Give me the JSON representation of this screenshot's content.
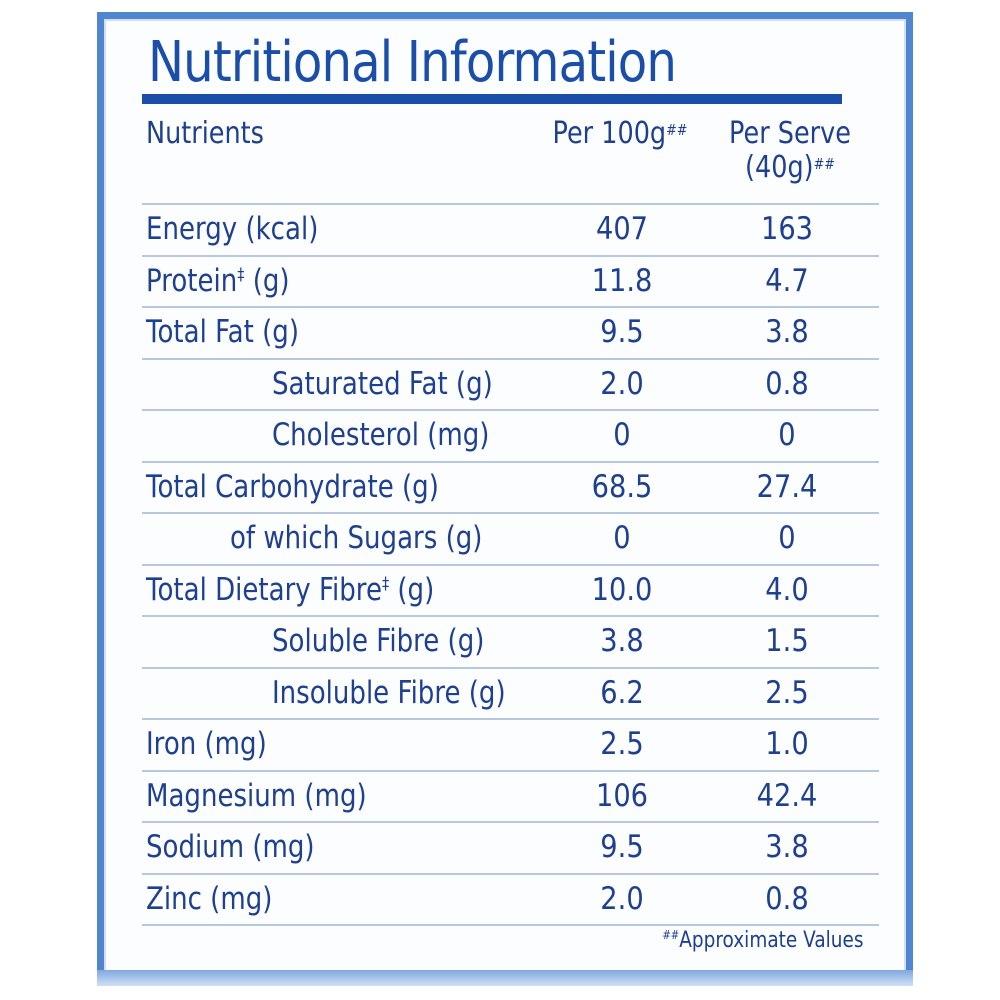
{
  "title": "Nutritional Information",
  "headers": {
    "nutrients": "Nutrients",
    "per100": "Per 100g",
    "per100_mark": "##",
    "serve_line1": "Per Serve",
    "serve_line2": "(40g)",
    "serve_mark": "##"
  },
  "rows": [
    {
      "name": "Energy (kcal)",
      "mark": "",
      "unit": "",
      "per100": "407",
      "serve": "163",
      "indent": 0
    },
    {
      "name": "Protein",
      "mark": "‡",
      "unit": " (g)",
      "per100": "11.8",
      "serve": "4.7",
      "indent": 0
    },
    {
      "name": "Total Fat (g)",
      "mark": "",
      "unit": "",
      "per100": "9.5",
      "serve": "3.8",
      "indent": 0
    },
    {
      "name": "Saturated Fat (g)",
      "mark": "",
      "unit": "",
      "per100": "2.0",
      "serve": "0.8",
      "indent": 3
    },
    {
      "name": "Cholesterol (mg)",
      "mark": "",
      "unit": "",
      "per100": "0",
      "serve": "0",
      "indent": 3
    },
    {
      "name": "Total Carbohydrate (g)",
      "mark": "",
      "unit": "",
      "per100": "68.5",
      "serve": "27.4",
      "indent": 0
    },
    {
      "name": "of which Sugars (g)",
      "mark": "",
      "unit": "",
      "per100": "0",
      "serve": "0",
      "indent": 2
    },
    {
      "name": "Total Dietary Fibre",
      "mark": "‡",
      "unit": " (g)",
      "per100": "10.0",
      "serve": "4.0",
      "indent": 0
    },
    {
      "name": "Soluble Fibre (g)",
      "mark": "",
      "unit": "",
      "per100": "3.8",
      "serve": "1.5",
      "indent": 3
    },
    {
      "name": "Insoluble Fibre (g)",
      "mark": "",
      "unit": "",
      "per100": "6.2",
      "serve": "2.5",
      "indent": 3
    },
    {
      "name": "Iron (mg)",
      "mark": "",
      "unit": "",
      "per100": "2.5",
      "serve": "1.0",
      "indent": 0
    },
    {
      "name": "Magnesium (mg)",
      "mark": "",
      "unit": "",
      "per100": "106",
      "serve": "42.4",
      "indent": 0
    },
    {
      "name": "Sodium (mg)",
      "mark": "",
      "unit": "",
      "per100": "9.5",
      "serve": "3.8",
      "indent": 0
    },
    {
      "name": "Zinc (mg)",
      "mark": "",
      "unit": "",
      "per100": "2.0",
      "serve": "0.8",
      "indent": 0
    }
  ],
  "footnote": {
    "mark": "##",
    "text": "Approximate Values"
  },
  "colors": {
    "text": "#1f3f8f",
    "title": "#1b4ea8",
    "border": "#4f86cf",
    "rule": "#b7c7dd"
  }
}
